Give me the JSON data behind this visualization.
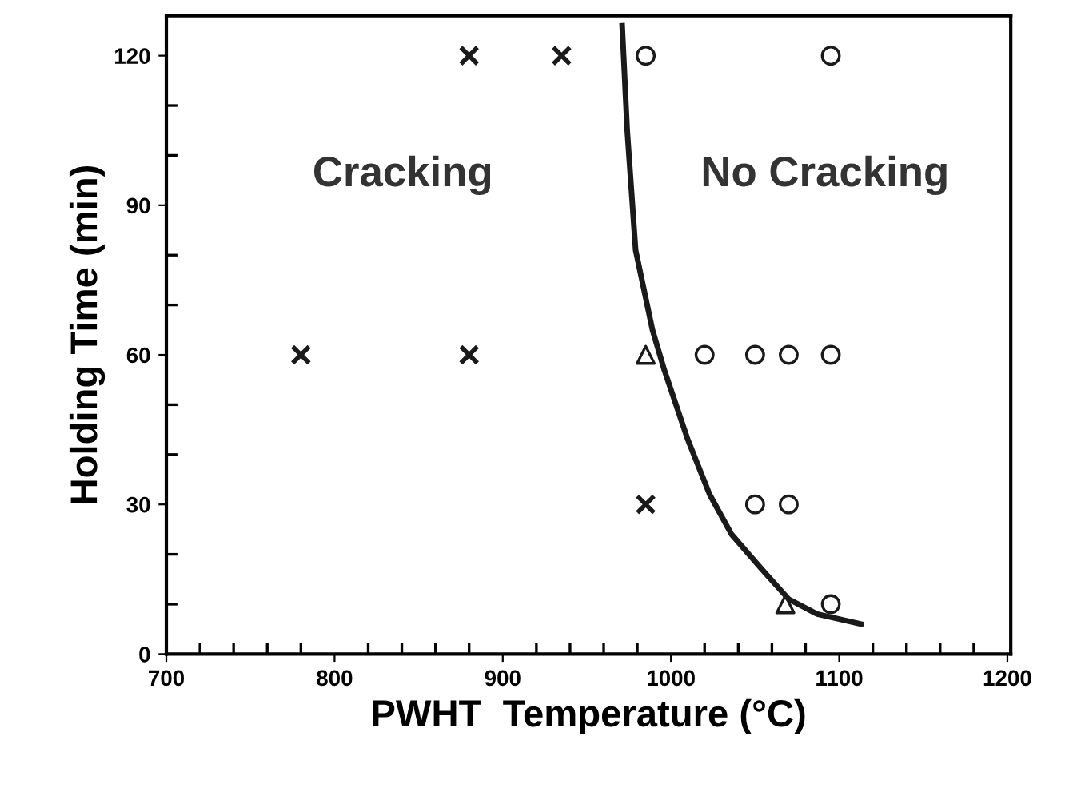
{
  "chart_data": {
    "type": "scatter",
    "xlabel": "PWHT  Temperature (°C)",
    "ylabel": "Holding Time (min)",
    "xlim": [
      700,
      1202
    ],
    "ylim": [
      0,
      128
    ],
    "xticks": [
      700,
      {
        "value": 720,
        "label": null
      },
      {
        "value": 740,
        "label": null
      },
      {
        "value": 760,
        "label": null
      },
      {
        "value": 780,
        "label": null
      },
      800,
      {
        "value": 820,
        "label": null
      },
      {
        "value": 840,
        "label": null
      },
      {
        "value": 860,
        "label": null
      },
      {
        "value": 880,
        "label": null
      },
      900,
      {
        "value": 920,
        "label": null
      },
      {
        "value": 940,
        "label": null
      },
      {
        "value": 960,
        "label": null
      },
      {
        "value": 980,
        "label": null
      },
      1000,
      {
        "value": 1020,
        "label": null
      },
      {
        "value": 1040,
        "label": null
      },
      {
        "value": 1060,
        "label": null
      },
      {
        "value": 1080,
        "label": null
      },
      1100,
      {
        "value": 1120,
        "label": null
      },
      {
        "value": 1140,
        "label": null
      },
      {
        "value": 1160,
        "label": null
      },
      {
        "value": 1180,
        "label": null
      },
      1200
    ],
    "yticks": [
      0,
      {
        "value": 10,
        "label": null
      },
      {
        "value": 20,
        "label": null
      },
      30,
      {
        "value": 40,
        "label": null
      },
      {
        "value": 50,
        "label": null
      },
      60,
      {
        "value": 70,
        "label": null
      },
      {
        "value": 80,
        "label": null
      },
      90,
      {
        "value": 100,
        "label": null
      },
      {
        "value": 110,
        "label": null
      },
      120
    ],
    "grid": false,
    "legend": false,
    "annotations": [
      "Cracking",
      "No Cracking"
    ],
    "series": [
      {
        "marker": "cross",
        "color": "#1a1a1a",
        "x": [
          780,
          880,
          880,
          935,
          985
        ],
        "values": [
          60,
          60,
          120,
          120,
          30
        ]
      },
      {
        "marker": "circle",
        "color": "#1a1a1a",
        "x": [
          985,
          1095,
          1020,
          1050,
          1070,
          1095,
          1050,
          1070,
          1095
        ],
        "values": [
          120,
          120,
          60,
          60,
          60,
          60,
          30,
          30,
          10
        ]
      },
      {
        "marker": "triangle",
        "color": "#1a1a1a",
        "x": [
          985,
          1068
        ],
        "values": [
          60,
          10
        ]
      },
      {
        "type": "line",
        "marker": "none",
        "line_style": "solid",
        "color": "#1a1a1a",
        "x": [
          971,
          974,
          979,
          989,
          996,
          1010,
          1023,
          1036,
          1054,
          1070,
          1087,
          1113
        ],
        "values": [
          126,
          105,
          81,
          65,
          57,
          43,
          32,
          24,
          17,
          11,
          8,
          6
        ]
      }
    ]
  }
}
